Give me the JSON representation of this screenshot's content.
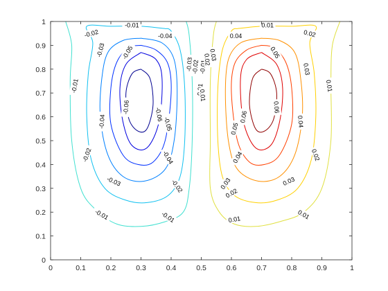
{
  "chart_data": {
    "type": "contour",
    "title": "",
    "xlabel": "",
    "ylabel": "",
    "xlim": [
      0,
      1
    ],
    "ylim": [
      0,
      1
    ],
    "grid": false,
    "legend": "none",
    "x_ticks": [
      "0",
      "0.1",
      "0.2",
      "0.3",
      "0.4",
      "0.5",
      "0.6",
      "0.7",
      "0.8",
      "0.9",
      "1"
    ],
    "y_ticks": [
      "0",
      "0.1",
      "0.2",
      "0.3",
      "0.4",
      "0.5",
      "0.6",
      "0.7",
      "0.8",
      "0.9",
      "1"
    ],
    "colormap": "parula",
    "levels": [
      -0.06,
      -0.05,
      -0.04,
      -0.03,
      -0.02,
      -0.01,
      0.01,
      0.02,
      0.03,
      0.04,
      0.05,
      0.06
    ],
    "level_colors": {
      "-0.06": "#00008f",
      "-0.05": "#0000df",
      "-0.04": "#0030ff",
      "-0.03": "#0080ff",
      "-0.02": "#10c0f0",
      "-0.01": "#40e0d0",
      "0.01": "#e0e040",
      "0.02": "#ffd000",
      "0.03": "#ff9000",
      "0.04": "#ff4000",
      "0.05": "#df0000",
      "0.06": "#8f0000"
    },
    "contours": [
      {
        "level": -0.01,
        "points": [
          [
            0.45,
            1.0
          ],
          [
            0.46,
            0.94
          ],
          [
            0.47,
            0.75
          ],
          [
            0.47,
            0.5
          ],
          [
            0.46,
            0.3
          ],
          [
            0.44,
            0.2
          ],
          [
            0.38,
            0.16
          ],
          [
            0.3,
            0.14
          ],
          [
            0.22,
            0.15
          ],
          [
            0.15,
            0.21
          ],
          [
            0.1,
            0.3
          ],
          [
            0.07,
            0.5
          ],
          [
            0.065,
            0.75
          ],
          [
            0.07,
            0.9
          ],
          [
            0.05,
            1.0
          ]
        ]
      },
      {
        "level": -0.02,
        "points": [
          [
            0.38,
            0.97
          ],
          [
            0.4,
            0.96
          ],
          [
            0.43,
            0.88
          ],
          [
            0.445,
            0.72
          ],
          [
            0.445,
            0.5
          ],
          [
            0.43,
            0.35
          ],
          [
            0.39,
            0.27
          ],
          [
            0.32,
            0.24
          ],
          [
            0.25,
            0.25
          ],
          [
            0.18,
            0.3
          ],
          [
            0.135,
            0.42
          ],
          [
            0.12,
            0.6
          ],
          [
            0.125,
            0.78
          ],
          [
            0.14,
            0.91
          ],
          [
            0.12,
            0.98
          ],
          [
            0.2,
            0.98
          ],
          [
            0.3,
            0.98
          ],
          [
            0.38,
            0.97
          ]
        ]
      },
      {
        "level": -0.03,
        "points": [
          [
            0.3,
            0.93
          ],
          [
            0.37,
            0.91
          ],
          [
            0.41,
            0.84
          ],
          [
            0.42,
            0.7
          ],
          [
            0.41,
            0.5
          ],
          [
            0.38,
            0.38
          ],
          [
            0.31,
            0.33
          ],
          [
            0.24,
            0.35
          ],
          [
            0.19,
            0.44
          ],
          [
            0.165,
            0.6
          ],
          [
            0.17,
            0.76
          ],
          [
            0.19,
            0.87
          ],
          [
            0.24,
            0.92
          ],
          [
            0.3,
            0.93
          ]
        ]
      },
      {
        "level": -0.04,
        "points": [
          [
            0.3,
            0.9
          ],
          [
            0.35,
            0.88
          ],
          [
            0.39,
            0.82
          ],
          [
            0.4,
            0.7
          ],
          [
            0.38,
            0.5
          ],
          [
            0.34,
            0.41
          ],
          [
            0.29,
            0.4
          ],
          [
            0.24,
            0.44
          ],
          [
            0.2,
            0.57
          ],
          [
            0.2,
            0.72
          ],
          [
            0.22,
            0.83
          ],
          [
            0.26,
            0.89
          ],
          [
            0.3,
            0.9
          ]
        ]
      },
      {
        "level": -0.05,
        "points": [
          [
            0.3,
            0.87
          ],
          [
            0.35,
            0.84
          ],
          [
            0.37,
            0.76
          ],
          [
            0.36,
            0.58
          ],
          [
            0.32,
            0.47
          ],
          [
            0.27,
            0.48
          ],
          [
            0.24,
            0.58
          ],
          [
            0.23,
            0.72
          ],
          [
            0.25,
            0.82
          ],
          [
            0.3,
            0.87
          ]
        ]
      },
      {
        "level": -0.06,
        "points": [
          [
            0.3,
            0.8
          ],
          [
            0.33,
            0.76
          ],
          [
            0.34,
            0.65
          ],
          [
            0.32,
            0.55
          ],
          [
            0.29,
            0.54
          ],
          [
            0.26,
            0.59
          ],
          [
            0.25,
            0.7
          ],
          [
            0.27,
            0.78
          ],
          [
            0.3,
            0.8
          ]
        ]
      },
      {
        "level": 0.01,
        "points": [
          [
            0.96,
            1.0
          ],
          [
            0.935,
            0.9
          ],
          [
            0.93,
            0.75
          ],
          [
            0.93,
            0.5
          ],
          [
            0.9,
            0.3
          ],
          [
            0.84,
            0.2
          ],
          [
            0.76,
            0.16
          ],
          [
            0.68,
            0.14
          ],
          [
            0.61,
            0.15
          ],
          [
            0.56,
            0.2
          ],
          [
            0.53,
            0.3
          ],
          [
            0.53,
            0.5
          ],
          [
            0.53,
            0.75
          ],
          [
            0.54,
            0.94
          ],
          [
            0.55,
            1.0
          ]
        ]
      },
      {
        "level": 0.02,
        "points": [
          [
            0.62,
            0.97
          ],
          [
            0.6,
            0.96
          ],
          [
            0.57,
            0.88
          ],
          [
            0.555,
            0.72
          ],
          [
            0.555,
            0.5
          ],
          [
            0.57,
            0.35
          ],
          [
            0.61,
            0.27
          ],
          [
            0.68,
            0.24
          ],
          [
            0.75,
            0.25
          ],
          [
            0.82,
            0.3
          ],
          [
            0.865,
            0.42
          ],
          [
            0.88,
            0.6
          ],
          [
            0.875,
            0.78
          ],
          [
            0.86,
            0.91
          ],
          [
            0.88,
            0.98
          ],
          [
            0.8,
            0.98
          ],
          [
            0.7,
            0.98
          ],
          [
            0.62,
            0.97
          ]
        ]
      },
      {
        "level": 0.03,
        "points": [
          [
            0.7,
            0.93
          ],
          [
            0.63,
            0.91
          ],
          [
            0.59,
            0.84
          ],
          [
            0.58,
            0.7
          ],
          [
            0.59,
            0.5
          ],
          [
            0.62,
            0.38
          ],
          [
            0.69,
            0.33
          ],
          [
            0.76,
            0.35
          ],
          [
            0.81,
            0.44
          ],
          [
            0.835,
            0.6
          ],
          [
            0.83,
            0.76
          ],
          [
            0.81,
            0.87
          ],
          [
            0.76,
            0.92
          ],
          [
            0.7,
            0.93
          ]
        ]
      },
      {
        "level": 0.04,
        "points": [
          [
            0.7,
            0.9
          ],
          [
            0.65,
            0.88
          ],
          [
            0.61,
            0.82
          ],
          [
            0.6,
            0.7
          ],
          [
            0.62,
            0.5
          ],
          [
            0.66,
            0.41
          ],
          [
            0.71,
            0.4
          ],
          [
            0.76,
            0.44
          ],
          [
            0.8,
            0.57
          ],
          [
            0.8,
            0.72
          ],
          [
            0.78,
            0.83
          ],
          [
            0.74,
            0.89
          ],
          [
            0.7,
            0.9
          ]
        ]
      },
      {
        "level": 0.05,
        "points": [
          [
            0.7,
            0.87
          ],
          [
            0.65,
            0.84
          ],
          [
            0.63,
            0.76
          ],
          [
            0.64,
            0.58
          ],
          [
            0.68,
            0.47
          ],
          [
            0.73,
            0.48
          ],
          [
            0.76,
            0.58
          ],
          [
            0.77,
            0.72
          ],
          [
            0.75,
            0.82
          ],
          [
            0.7,
            0.87
          ]
        ]
      },
      {
        "level": 0.06,
        "points": [
          [
            0.7,
            0.8
          ],
          [
            0.67,
            0.76
          ],
          [
            0.66,
            0.65
          ],
          [
            0.68,
            0.55
          ],
          [
            0.71,
            0.54
          ],
          [
            0.74,
            0.59
          ],
          [
            0.75,
            0.7
          ],
          [
            0.73,
            0.78
          ],
          [
            0.7,
            0.8
          ]
        ]
      }
    ],
    "contour_labels": [
      {
        "text": "-0.01",
        "x": 0.27,
        "y": 0.985,
        "angle": 0
      },
      {
        "text": "-0.02",
        "x": 0.135,
        "y": 0.95,
        "angle": -15
      },
      {
        "text": "-0.03",
        "x": 0.165,
        "y": 0.88,
        "angle": -75
      },
      {
        "text": "-0.04",
        "x": 0.38,
        "y": 0.94,
        "angle": 0
      },
      {
        "text": "-0.05",
        "x": 0.255,
        "y": 0.87,
        "angle": -60
      },
      {
        "text": "-0.03",
        "x": 0.46,
        "y": 0.82,
        "angle": -85
      },
      {
        "text": "-0.02",
        "x": 0.48,
        "y": 0.81,
        "angle": -85
      },
      {
        "text": "-0.01",
        "x": 0.505,
        "y": 0.81,
        "angle": -85
      },
      {
        "text": "-0.01",
        "x": 0.08,
        "y": 0.73,
        "angle": -80
      },
      {
        "text": "-0.06",
        "x": 0.25,
        "y": 0.64,
        "angle": -85
      },
      {
        "text": "-0.06",
        "x": 0.36,
        "y": 0.61,
        "angle": 80
      },
      {
        "text": "-0.04",
        "x": 0.17,
        "y": 0.58,
        "angle": -85
      },
      {
        "text": "-0.05",
        "x": 0.39,
        "y": 0.57,
        "angle": 75
      },
      {
        "text": "-0.01",
        "x": 0.495,
        "y": 0.71,
        "angle": -85
      },
      {
        "text": "-0.02",
        "x": 0.12,
        "y": 0.44,
        "angle": -70
      },
      {
        "text": "-0.04",
        "x": 0.39,
        "y": 0.43,
        "angle": 60
      },
      {
        "text": "-0.03",
        "x": 0.21,
        "y": 0.33,
        "angle": 25
      },
      {
        "text": "-0.02",
        "x": 0.42,
        "y": 0.31,
        "angle": 55
      },
      {
        "text": "-0.01",
        "x": 0.17,
        "y": 0.19,
        "angle": 30
      },
      {
        "text": "-0.01",
        "x": 0.39,
        "y": 0.18,
        "angle": 35
      },
      {
        "text": "0.01",
        "x": 0.72,
        "y": 0.985,
        "angle": 0
      },
      {
        "text": "0.02",
        "x": 0.86,
        "y": 0.95,
        "angle": 15
      },
      {
        "text": "0.04",
        "x": 0.615,
        "y": 0.94,
        "angle": 0
      },
      {
        "text": "0.03",
        "x": 0.54,
        "y": 0.86,
        "angle": 80
      },
      {
        "text": "0.02",
        "x": 0.52,
        "y": 0.84,
        "angle": 85
      },
      {
        "text": "0.05",
        "x": 0.745,
        "y": 0.87,
        "angle": 60
      },
      {
        "text": "0.03",
        "x": 0.85,
        "y": 0.8,
        "angle": 80
      },
      {
        "text": "0.01",
        "x": 0.505,
        "y": 0.69,
        "angle": 85
      },
      {
        "text": "0.01",
        "x": 0.925,
        "y": 0.73,
        "angle": 80
      },
      {
        "text": "0.06",
        "x": 0.75,
        "y": 0.64,
        "angle": 85
      },
      {
        "text": "0.06",
        "x": 0.64,
        "y": 0.6,
        "angle": -80
      },
      {
        "text": "0.04",
        "x": 0.83,
        "y": 0.58,
        "angle": 85
      },
      {
        "text": "0.05",
        "x": 0.61,
        "y": 0.55,
        "angle": -75
      },
      {
        "text": "0.02",
        "x": 0.88,
        "y": 0.44,
        "angle": 70
      },
      {
        "text": "0.04",
        "x": 0.62,
        "y": 0.43,
        "angle": -60
      },
      {
        "text": "0.03",
        "x": 0.79,
        "y": 0.33,
        "angle": -25
      },
      {
        "text": "0.03",
        "x": 0.58,
        "y": 0.32,
        "angle": -55
      },
      {
        "text": "0.02",
        "x": 0.6,
        "y": 0.28,
        "angle": -30
      },
      {
        "text": "0.01",
        "x": 0.61,
        "y": 0.17,
        "angle": -10
      },
      {
        "text": "0.01",
        "x": 0.84,
        "y": 0.19,
        "angle": 30
      }
    ]
  }
}
